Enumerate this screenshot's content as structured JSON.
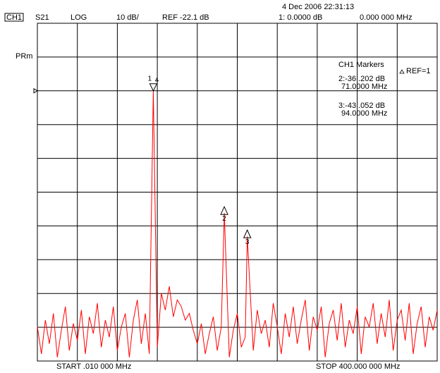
{
  "header": {
    "channel": "CH1",
    "param": "S21",
    "format": "LOG",
    "scale": "10 dB/",
    "ref": "REF -22.1 dB",
    "date": "4 Dec 2006  22:31:13",
    "marker1_value": "1: 0.0000  dB",
    "marker1_freq": "0.000  000  MHz",
    "side_label": "PRm"
  },
  "marker_table": {
    "title": "CH1 Markers",
    "ref": "REF=1",
    "rows": [
      [
        "2:-36 .202  dB",
        "71.0000  MHz"
      ],
      [
        "3:-43 .052  dB",
        "94.0000  MHz"
      ]
    ]
  },
  "footer": {
    "start": "START   .010  000  MHz",
    "stop": "STOP  400.000  000  MHz"
  },
  "chart_data": {
    "type": "line",
    "xlim": [
      0.01,
      400
    ],
    "ylim": [
      -102.1,
      -2.1
    ],
    "ref_level": -22.1,
    "grid": true,
    "x": [
      0.01,
      4,
      8,
      12,
      16,
      20,
      24,
      28,
      32,
      36,
      40,
      44,
      48,
      52,
      56,
      60,
      64,
      68,
      72,
      76,
      80,
      84,
      88,
      92,
      96,
      100,
      104,
      108,
      112,
      116,
      120,
      124,
      128,
      132,
      136,
      140,
      144,
      148,
      152,
      156,
      160,
      164,
      168,
      172,
      176,
      180,
      184,
      187,
      192,
      196,
      200,
      204,
      208,
      210,
      216,
      220,
      224,
      228,
      232,
      236,
      240,
      244,
      248,
      252,
      256,
      260,
      264,
      268,
      272,
      276,
      280,
      284,
      288,
      292,
      296,
      300,
      304,
      308,
      312,
      316,
      320,
      324,
      328,
      332,
      336,
      340,
      344,
      348,
      352,
      356,
      360,
      364,
      368,
      372,
      376,
      380,
      384,
      388,
      392,
      396,
      400
    ],
    "series": [
      {
        "color": "#ff0000",
        "values": [
          -92,
          -100,
          -90,
          -97,
          -88,
          -101,
          -93,
          -86,
          -99,
          -91,
          -96,
          -87,
          -100,
          -89,
          -94,
          -85,
          -98,
          -90,
          -95,
          -86,
          -99,
          -92,
          -88,
          -101,
          -90,
          -84,
          -97,
          -88,
          -100,
          -22.1,
          -98,
          -82,
          -87,
          -80,
          -89,
          -84,
          -86,
          -90,
          -88,
          -93,
          -97,
          -91,
          -100,
          -94,
          -89,
          -99,
          -92,
          -58.3,
          -101,
          -93,
          -88,
          -98,
          -95,
          -65.2,
          -99,
          -87,
          -94,
          -90,
          -98,
          -85,
          -92,
          -100,
          -88,
          -95,
          -86,
          -97,
          -90,
          -84,
          -99,
          -89,
          -93,
          -86,
          -101,
          -91,
          -87,
          -96,
          -85,
          -98,
          -90,
          -94,
          -86,
          -100,
          -89,
          -92,
          -85,
          -97,
          -88,
          -95,
          -84,
          -99,
          -90,
          -87,
          -96,
          -85,
          -100,
          -91,
          -86,
          -98,
          -89,
          -93,
          -87
        ]
      }
    ],
    "markers": [
      {
        "label": "1",
        "x": 116,
        "value": -22.1
      },
      {
        "label": "2",
        "x": 187,
        "value": -58.3
      },
      {
        "label": "3",
        "x": 210,
        "value": -65.2
      }
    ]
  }
}
